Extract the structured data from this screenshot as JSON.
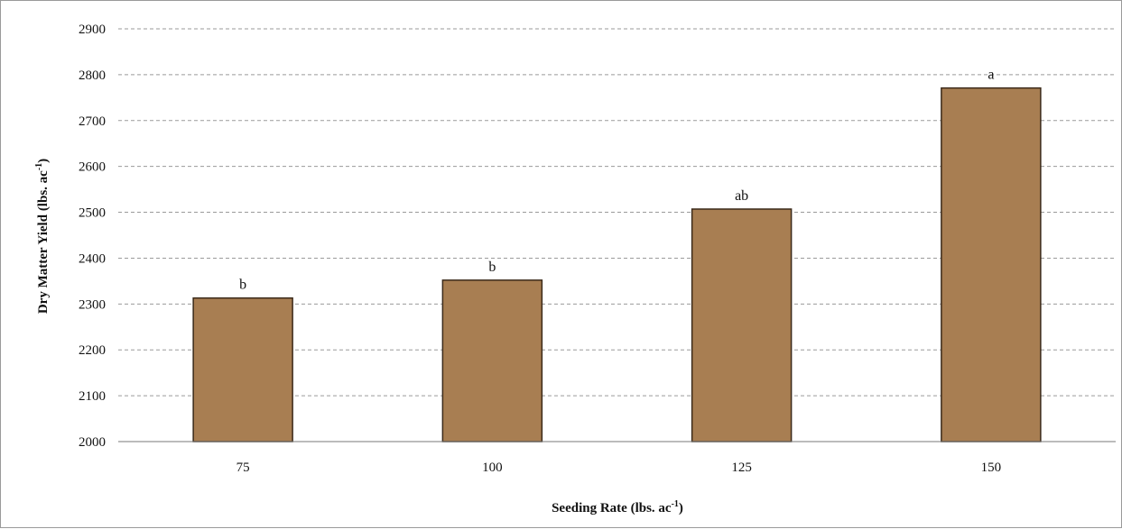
{
  "chart_data": {
    "type": "bar",
    "categories": [
      "75",
      "100",
      "125",
      "150"
    ],
    "values": [
      2313,
      2352,
      2507,
      2771
    ],
    "letters": [
      "b",
      "b",
      "ab",
      "a"
    ],
    "xlabel": {
      "main": "Seeding Rate (lbs. ac",
      "sup": "-1",
      "close": ")"
    },
    "ylabel": {
      "main": "Dry Matter Yield (lbs. ac",
      "sup": "-1",
      "close": ")"
    },
    "ylim": [
      2000,
      2900
    ],
    "yticks": [
      "2000",
      "2100",
      "2200",
      "2300",
      "2400",
      "2500",
      "2600",
      "2700",
      "2800",
      "2900"
    ],
    "grid": true,
    "bar_color": "#a87e52",
    "bar_stroke": "#3b2a1a"
  }
}
